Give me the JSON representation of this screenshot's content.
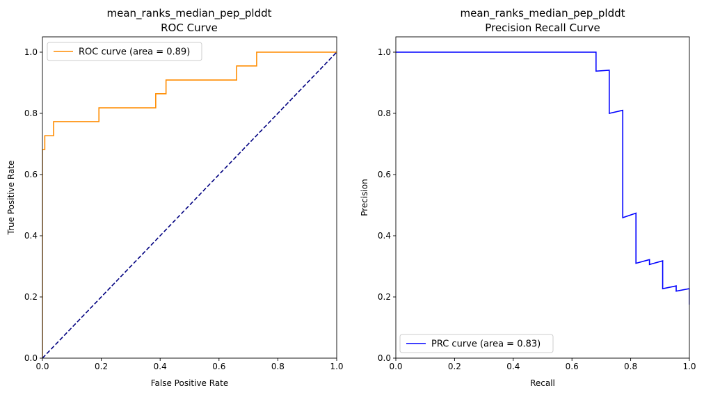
{
  "chart_data": [
    {
      "type": "line",
      "title": "mean_ranks_median_pep_plddt",
      "subtitle": "ROC Curve",
      "xlabel": "False Positive Rate",
      "ylabel": "True Positive Rate",
      "xlim": [
        0.0,
        1.0
      ],
      "ylim": [
        0.0,
        1.05
      ],
      "xticks": [
        "0.0",
        "0.2",
        "0.4",
        "0.6",
        "0.8",
        "1.0"
      ],
      "yticks": [
        "0.0",
        "0.2",
        "0.4",
        "0.6",
        "0.8",
        "1.0"
      ],
      "grid": false,
      "legend_position": "upper-left",
      "series": [
        {
          "name": "ROC curve (area = 0.89)",
          "color": "#ff8c00",
          "style": "solid",
          "step": true,
          "x": [
            0.0,
            0.0,
            0.008,
            0.008,
            0.038,
            0.038,
            0.192,
            0.192,
            0.385,
            0.385,
            0.42,
            0.42,
            0.66,
            0.66,
            0.728,
            0.728,
            1.0
          ],
          "y": [
            0.0,
            0.682,
            0.682,
            0.727,
            0.727,
            0.773,
            0.773,
            0.818,
            0.818,
            0.864,
            0.864,
            0.909,
            0.909,
            0.955,
            0.955,
            1.0,
            1.0
          ]
        },
        {
          "name": "",
          "color": "#000080",
          "style": "dashed",
          "step": false,
          "x": [
            0.0,
            1.0
          ],
          "y": [
            0.0,
            1.0
          ]
        }
      ]
    },
    {
      "type": "line",
      "title": "mean_ranks_median_pep_plddt",
      "subtitle": "Precision Recall Curve",
      "xlabel": "Recall",
      "ylabel": "Precision",
      "xlim": [
        0.0,
        1.0
      ],
      "ylim": [
        0.0,
        1.05
      ],
      "xticks": [
        "0.0",
        "0.2",
        "0.4",
        "0.6",
        "0.8",
        "1.0"
      ],
      "yticks": [
        "0.0",
        "0.2",
        "0.4",
        "0.6",
        "0.8",
        "1.0"
      ],
      "grid": false,
      "legend_position": "lower-left",
      "series": [
        {
          "name": "PRC curve (area = 0.83)",
          "color": "#0000ff",
          "style": "solid",
          "step": true,
          "x": [
            0.0,
            0.682,
            0.682,
            0.727,
            0.727,
            0.773,
            0.773,
            0.818,
            0.818,
            0.864,
            0.864,
            0.909,
            0.909,
            0.955,
            0.955,
            1.0,
            1.0
          ],
          "y": [
            1.0,
            1.0,
            0.938,
            0.941,
            0.8,
            0.81,
            0.459,
            0.474,
            0.31,
            0.322,
            0.306,
            0.318,
            0.227,
            0.236,
            0.219,
            0.227,
            0.175
          ]
        }
      ]
    }
  ]
}
